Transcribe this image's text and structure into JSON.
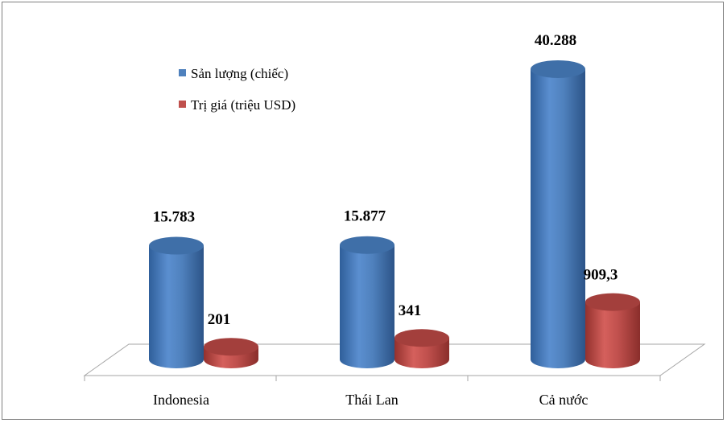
{
  "chart_data": {
    "type": "bar",
    "categories": [
      "Indonesia",
      "Thái Lan",
      "Cả nước"
    ],
    "series": [
      {
        "name": "Sản lượng (chiếc)",
        "values": [
          15783,
          15877,
          40288
        ],
        "labels": [
          "15.783",
          "15.877",
          "40.288"
        ],
        "color": "#4f81bd"
      },
      {
        "name": "Trị giá (triệu USD)",
        "values": [
          201,
          341,
          909.3
        ],
        "labels": [
          "201",
          "341",
          "909,3"
        ],
        "color": "#c0504d"
      }
    ],
    "legend_position": "top-left",
    "gridlines": false,
    "style": "3d-cylinder"
  }
}
